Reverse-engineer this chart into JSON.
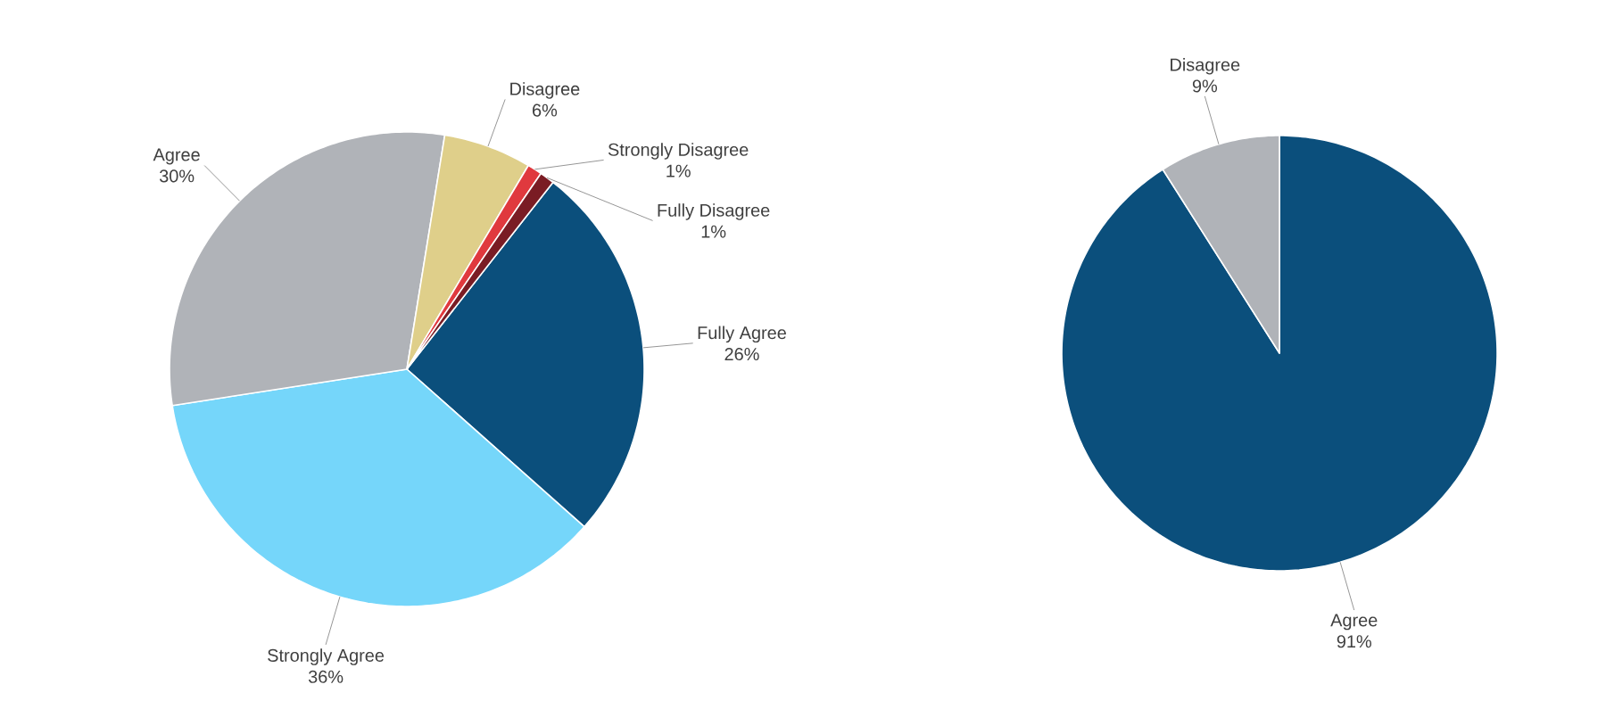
{
  "chart_data": [
    {
      "type": "pie",
      "categories": [
        "Fully Agree",
        "Strongly Agree",
        "Agree",
        "Disagree",
        "Strongly Disagree",
        "Fully Disagree"
      ],
      "values": [
        26,
        36,
        30,
        6,
        1,
        1
      ],
      "colors": [
        "#0b4f7c",
        "#75d6fa",
        "#b0b3b8",
        "#dfcf8a",
        "#e0393e",
        "#7a1c24"
      ],
      "value_labels": [
        "26%",
        "36%",
        "30%",
        "6%",
        "1%",
        "1%"
      ]
    },
    {
      "type": "pie",
      "categories": [
        "Agree",
        "Disagree"
      ],
      "values": [
        91,
        9
      ],
      "colors": [
        "#0b4f7c",
        "#b0b3b8"
      ],
      "value_labels": [
        "91%",
        "9%"
      ]
    }
  ]
}
